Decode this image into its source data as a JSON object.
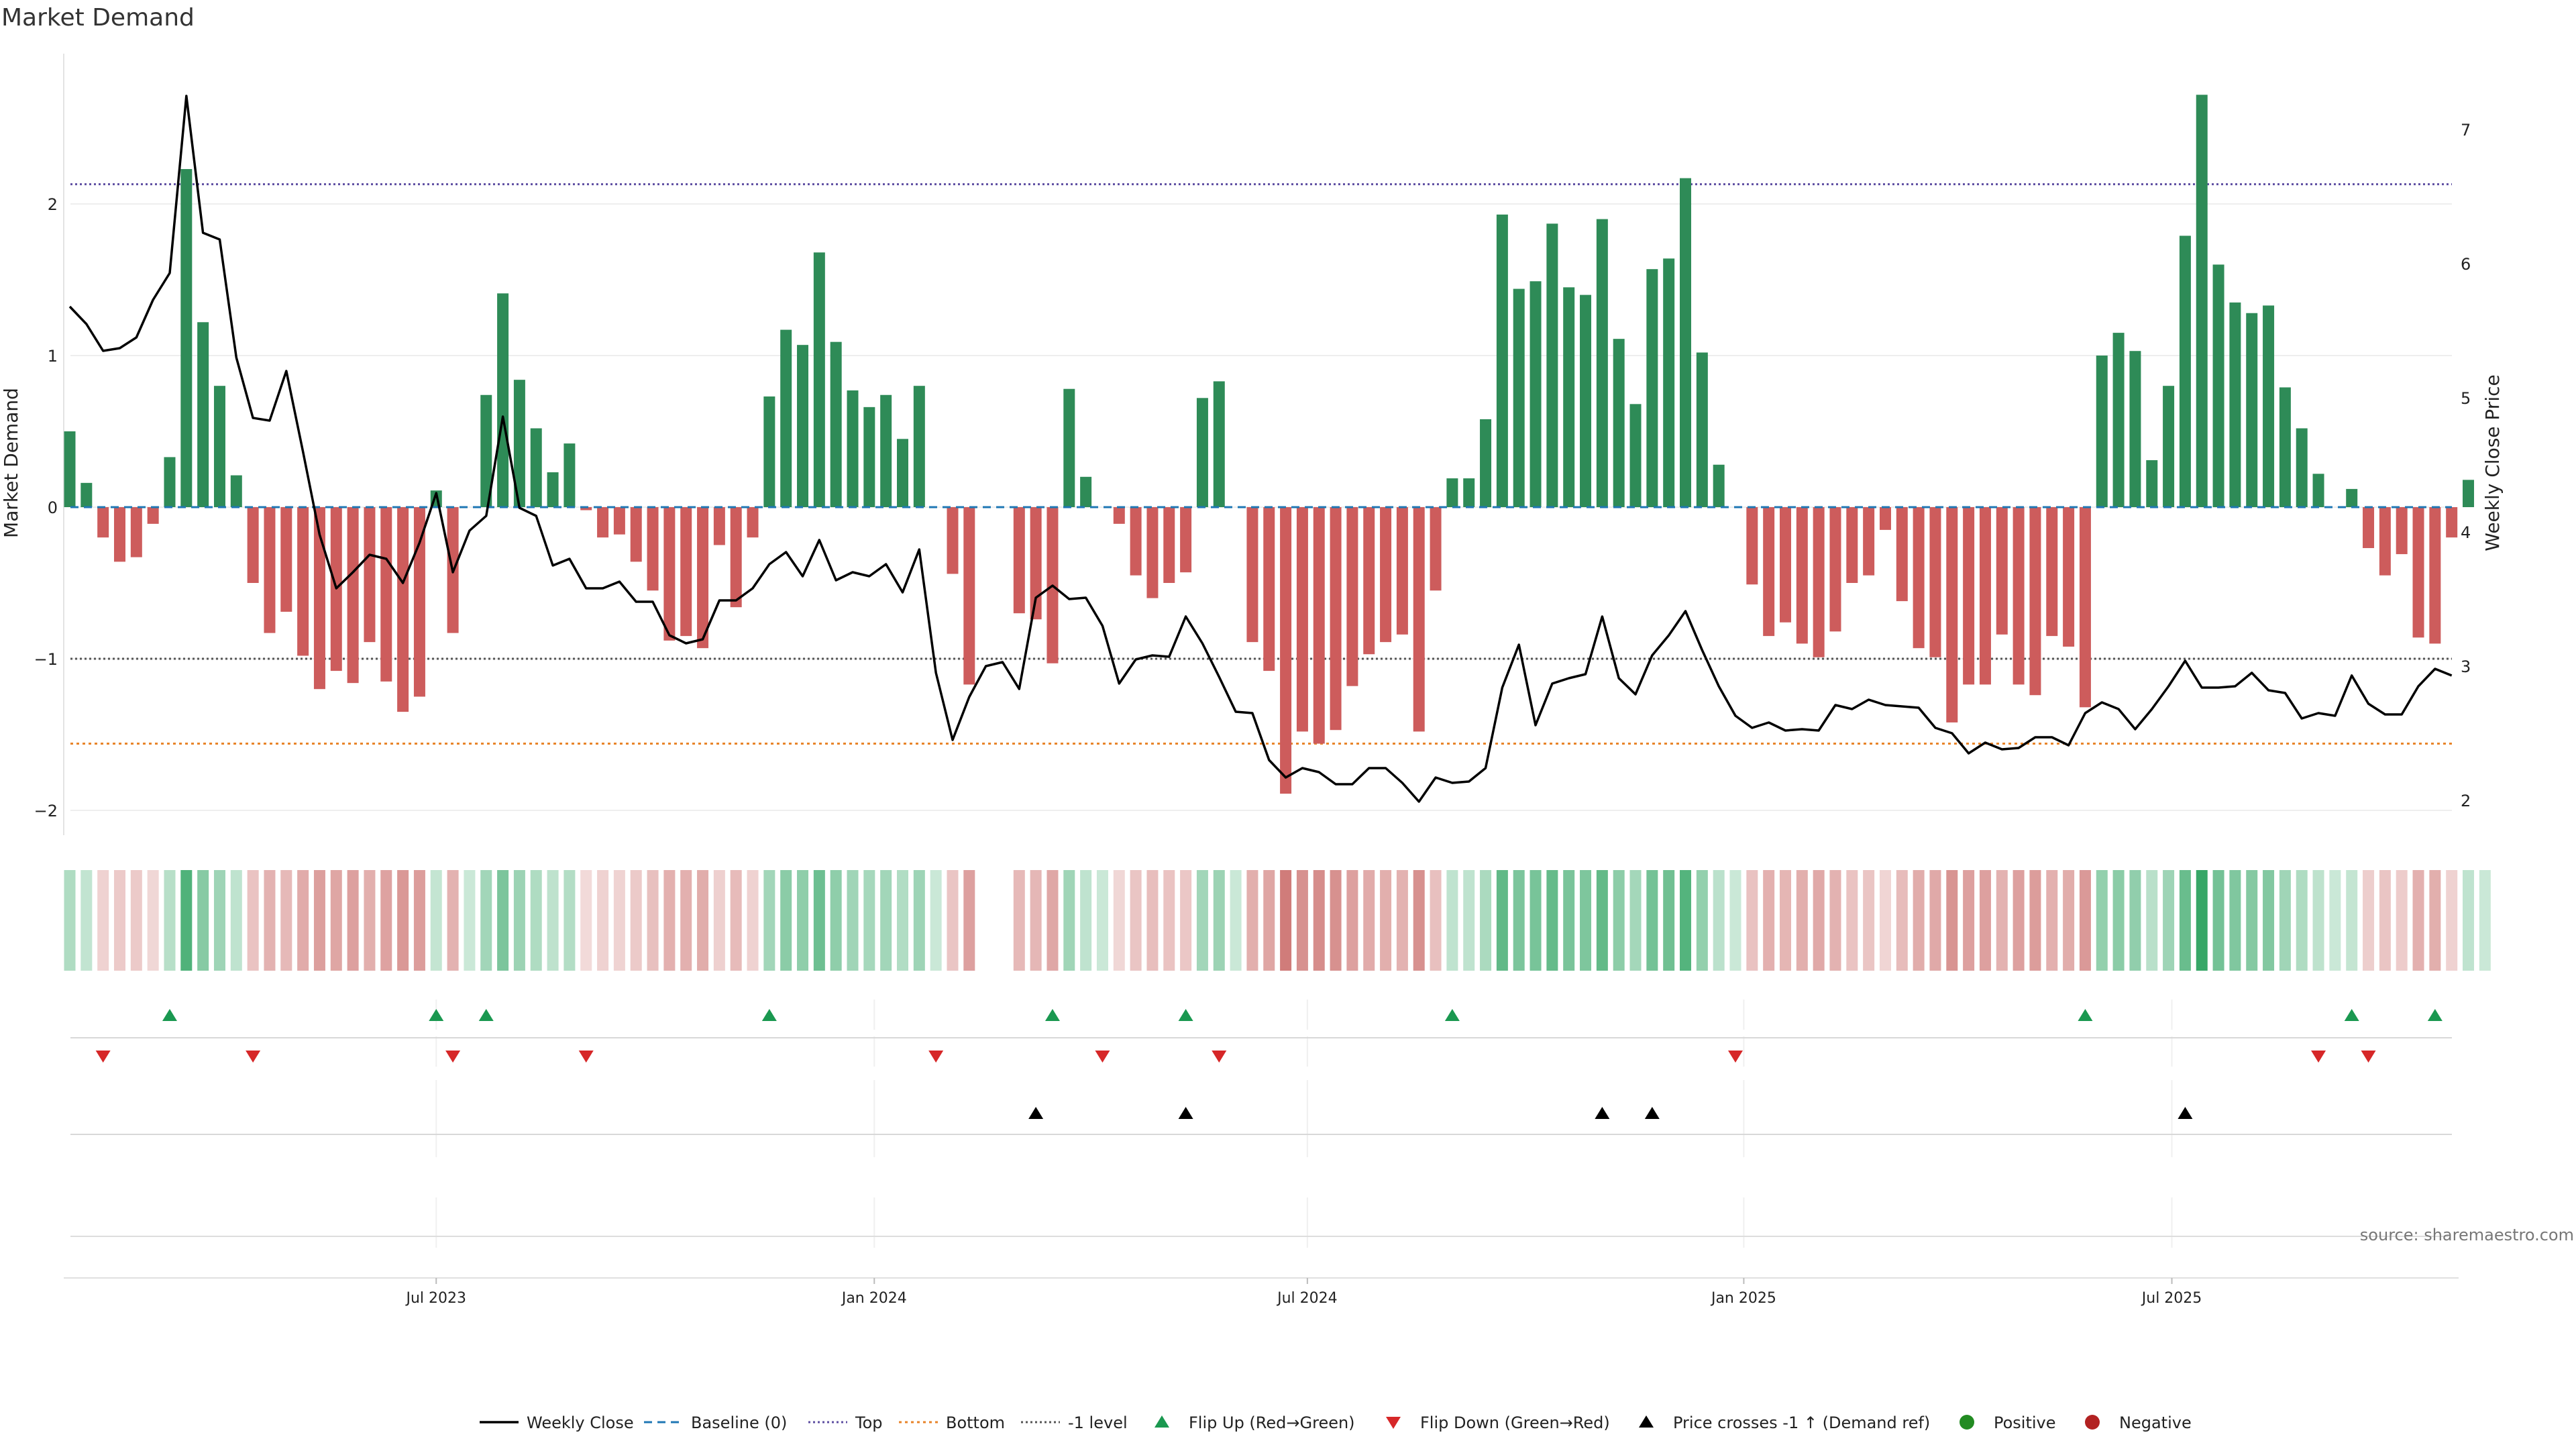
{
  "title": "Market Demand",
  "source": "source: sharemaestro.com",
  "colors": {
    "positive": "#2e8b57",
    "negative": "#cd5c5c",
    "price_line": "#000000",
    "baseline": "#1f77b4",
    "top": "#5e4fa2",
    "bottom": "#e8842a",
    "minus_one": "#555555",
    "flip_up": "#1a9850",
    "flip_down": "#d62728",
    "cross": "#000000",
    "dot_positive": "#228b22",
    "dot_negative": "#b22222"
  },
  "chart_data": {
    "type": "bar",
    "title": "Market Demand",
    "ylabel": "Market Demand",
    "y2label": "Weekly Close Price",
    "ylim": [
      -2.1,
      2.75
    ],
    "y2lim": [
      1.95,
      7.5
    ],
    "yticks": [
      {
        "value": 2,
        "label": "2"
      },
      {
        "value": 1,
        "label": "1"
      },
      {
        "value": 0,
        "label": "0"
      },
      {
        "value": -1,
        "label": "−1"
      },
      {
        "value": -2,
        "label": "−2"
      }
    ],
    "y2ticks": [
      {
        "value": 7,
        "label": "7"
      },
      {
        "value": 6,
        "label": "6"
      },
      {
        "value": 5,
        "label": "5"
      },
      {
        "value": 4,
        "label": "4"
      },
      {
        "value": 3,
        "label": "3"
      },
      {
        "value": 2,
        "label": "2"
      }
    ],
    "date_ticks": [
      {
        "week": 22,
        "label": "Jul 2023"
      },
      {
        "week": 48.3,
        "label": "Jan 2024"
      },
      {
        "week": 74.3,
        "label": "Jul 2024"
      },
      {
        "week": 100.5,
        "label": "Jan 2025"
      },
      {
        "week": 126.2,
        "label": "Jul 2025"
      }
    ],
    "reference_lines": {
      "top": 2.13,
      "bottom": -1.56,
      "minus_one": -1.0,
      "baseline": 0
    },
    "demand": [
      0.5,
      0.16,
      -0.2,
      -0.36,
      -0.33,
      -0.11,
      0.33,
      2.23,
      1.22,
      0.8,
      0.21,
      -0.5,
      -0.83,
      -0.69,
      -0.98,
      -1.2,
      -1.08,
      -1.16,
      -0.89,
      -1.15,
      -1.35,
      -1.25,
      0.11,
      -0.83,
      0.0,
      0.74,
      1.41,
      0.84,
      0.52,
      0.23,
      0.42,
      -0.02,
      -0.2,
      -0.18,
      -0.36,
      -0.55,
      -0.88,
      -0.85,
      -0.93,
      -0.25,
      -0.66,
      -0.2,
      0.73,
      1.17,
      1.07,
      1.68,
      1.09,
      0.77,
      0.66,
      0.74,
      0.45,
      0.8,
      0.0,
      -0.44,
      -1.17,
      0.0,
      0.0,
      -0.7,
      -0.74,
      -1.03,
      0.78,
      0.2,
      0.0,
      -0.11,
      -0.45,
      -0.6,
      -0.5,
      -0.43,
      0.72,
      0.83,
      0.0,
      -0.89,
      -1.08,
      -1.89,
      -1.48,
      -1.56,
      -1.47,
      -1.18,
      -0.97,
      -0.89,
      -0.84,
      -1.48,
      -0.55,
      0.19,
      0.19,
      0.58,
      1.93,
      1.44,
      1.49,
      1.87,
      1.45,
      1.4,
      1.9,
      1.11,
      0.68,
      1.57,
      1.64,
      2.17,
      1.02,
      0.28,
      0.0,
      -0.51,
      -0.85,
      -0.76,
      -0.9,
      -0.99,
      -0.82,
      -0.5,
      -0.45,
      -0.15,
      -0.62,
      -0.93,
      -0.99,
      -1.42,
      -1.17,
      -1.17,
      -0.84,
      -1.17,
      -1.24,
      -0.85,
      -0.92,
      -1.32,
      1.0,
      1.15,
      1.03,
      0.31,
      0.8,
      1.79,
      2.72,
      1.6,
      1.35,
      1.28,
      1.33,
      0.79,
      0.52,
      0.22,
      0.0,
      0.12,
      -0.27,
      -0.45,
      -0.31,
      -0.86,
      -0.9,
      -0.2,
      0.18,
      0.0
    ],
    "price": [
      5.68,
      5.55,
      5.35,
      5.37,
      5.45,
      5.73,
      5.93,
      7.25,
      6.23,
      6.18,
      5.3,
      4.85,
      4.83,
      5.2,
      4.6,
      3.98,
      3.58,
      3.7,
      3.83,
      3.8,
      3.62,
      3.92,
      4.29,
      3.7,
      4.01,
      4.12,
      4.86,
      4.18,
      4.12,
      3.75,
      3.8,
      3.58,
      3.58,
      3.63,
      3.48,
      3.48,
      3.23,
      3.17,
      3.2,
      3.49,
      3.49,
      3.58,
      3.76,
      3.85,
      3.67,
      3.94,
      3.64,
      3.7,
      3.67,
      3.76,
      3.55,
      3.87,
      2.95,
      2.45,
      2.77,
      3.0,
      3.03,
      2.83,
      3.51,
      3.6,
      3.5,
      3.51,
      3.3,
      2.87,
      3.05,
      3.08,
      3.07,
      3.37,
      3.17,
      2.92,
      2.66,
      2.65,
      2.3,
      2.17,
      2.24,
      2.21,
      2.12,
      2.12,
      2.24,
      2.24,
      2.13,
      1.99,
      2.17,
      2.13,
      2.14,
      2.24,
      2.84,
      3.16,
      2.56,
      2.87,
      2.91,
      2.94,
      3.37,
      2.91,
      2.79,
      3.08,
      3.23,
      3.41,
      3.12,
      2.85,
      2.63,
      2.54,
      2.58,
      2.52,
      2.53,
      2.52,
      2.71,
      2.68,
      2.75,
      2.71,
      2.7,
      2.69,
      2.54,
      2.5,
      2.35,
      2.43,
      2.38,
      2.39,
      2.47,
      2.47,
      2.41,
      2.65,
      2.73,
      2.68,
      2.53,
      2.68,
      2.85,
      3.04,
      2.84,
      2.84,
      2.85,
      2.95,
      2.82,
      2.8,
      2.61,
      2.65,
      2.63,
      2.93,
      2.72,
      2.64,
      2.64,
      2.85,
      2.98,
      2.93
    ],
    "flip_up": [
      6,
      22,
      25,
      42,
      59,
      67,
      83,
      121,
      137,
      142
    ],
    "flip_down": [
      2,
      11,
      23,
      31,
      52,
      62,
      69,
      100,
      135,
      138
    ],
    "price_cross_up": [
      58,
      67,
      92,
      95,
      127
    ]
  },
  "legend": [
    {
      "key": "weekly_close",
      "label": "Weekly Close"
    },
    {
      "key": "baseline",
      "label": "Baseline (0)"
    },
    {
      "key": "top",
      "label": "Top"
    },
    {
      "key": "bottom",
      "label": "Bottom"
    },
    {
      "key": "minus_one",
      "label": "-1 level"
    },
    {
      "key": "flip_up",
      "label": "Flip Up (Red→Green)"
    },
    {
      "key": "flip_down",
      "label": "Flip Down (Green→Red)"
    },
    {
      "key": "cross_up",
      "label": "Price crosses -1 ↑ (Demand ref)"
    },
    {
      "key": "positive",
      "label": "Positive"
    },
    {
      "key": "negative",
      "label": "Negative"
    }
  ]
}
